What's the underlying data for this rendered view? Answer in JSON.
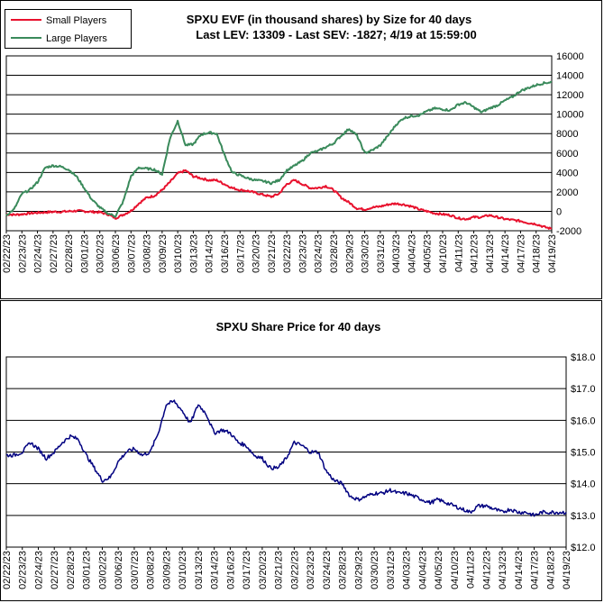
{
  "chart_data": [
    {
      "type": "line",
      "title": "SPXU EVF (in thousand shares) by Size for 40 days",
      "subtitle": "Last LEV: 13309 - Last SEV: -1827; 4/19 at 15:59:00",
      "ylim": [
        -2000,
        16000
      ],
      "yticks": [
        -2000,
        0,
        2000,
        4000,
        6000,
        8000,
        10000,
        12000,
        14000,
        16000
      ],
      "grid": true,
      "legend_position": "top-left",
      "categories": [
        "02/22/23",
        "02/23/23",
        "02/24/23",
        "02/27/23",
        "02/28/23",
        "03/01/23",
        "03/02/23",
        "03/06/23",
        "03/07/23",
        "03/08/23",
        "03/09/23",
        "03/10/23",
        "03/13/23",
        "03/14/23",
        "03/16/23",
        "03/17/23",
        "03/20/23",
        "03/21/23",
        "03/22/23",
        "03/23/23",
        "03/24/23",
        "03/28/23",
        "03/29/23",
        "03/30/23",
        "03/31/23",
        "04/03/23",
        "04/04/23",
        "04/05/23",
        "04/10/23",
        "04/11/23",
        "04/12/23",
        "04/13/23",
        "04/14/23",
        "04/17/23",
        "04/18/23",
        "04/19/23"
      ],
      "series": [
        {
          "name": "Small Players",
          "color": "#e8112d",
          "x": [
            0,
            0.5,
            1,
            1.5,
            2,
            2.5,
            3,
            3.5,
            4,
            4.5,
            5,
            5.5,
            6,
            6.5,
            7,
            7.5,
            8,
            8.5,
            9,
            9.5,
            10,
            10.5,
            11,
            11.5,
            12,
            12.5,
            13,
            13.5,
            14,
            14.5,
            15,
            15.5,
            16,
            16.5,
            17,
            17.5,
            18,
            18.5,
            19,
            19.5,
            20,
            20.5,
            21,
            21.5,
            22,
            22.5,
            23,
            23.5,
            24,
            24.5,
            25,
            25.5,
            26,
            26.5,
            27,
            27.5,
            28,
            28.5,
            29,
            29.5,
            30,
            30.5,
            31,
            31.5,
            32,
            32.5,
            33,
            33.5,
            34,
            34.5,
            35
          ],
          "values": [
            -300,
            -350,
            -300,
            -200,
            -150,
            -100,
            -50,
            -50,
            0,
            50,
            0,
            -50,
            -100,
            -300,
            -700,
            -350,
            50,
            800,
            1400,
            1600,
            2200,
            3000,
            3900,
            4200,
            3600,
            3400,
            3200,
            3200,
            2800,
            2400,
            2200,
            2100,
            1900,
            1700,
            1500,
            1800,
            2800,
            3200,
            2800,
            2400,
            2400,
            2600,
            2200,
            1400,
            900,
            300,
            200,
            400,
            500,
            700,
            800,
            700,
            500,
            200,
            0,
            -200,
            -300,
            -400,
            -700,
            -800,
            -600,
            -600,
            -400,
            -600,
            -800,
            -900,
            -1000,
            -1200,
            -1300,
            -1600,
            -1800
          ]
        },
        {
          "name": "Large Players",
          "color": "#3a8a5b",
          "x": [
            0,
            0.5,
            1,
            1.5,
            2,
            2.5,
            3,
            3.5,
            4,
            4.5,
            5,
            5.5,
            6,
            6.5,
            7,
            7.5,
            8,
            8.5,
            9,
            9.5,
            10,
            10.5,
            11,
            11.5,
            12,
            12.5,
            13,
            13.5,
            14,
            14.5,
            15,
            15.5,
            16,
            16.5,
            17,
            17.5,
            18,
            18.5,
            19,
            19.5,
            20,
            20.5,
            21,
            21.5,
            22,
            22.5,
            23,
            23.5,
            24,
            24.5,
            25,
            25.5,
            26,
            26.5,
            27,
            27.5,
            28,
            28.5,
            29,
            29.5,
            30,
            30.5,
            31,
            31.5,
            32,
            32.5,
            33,
            33.5,
            34,
            34.5,
            35
          ],
          "values": [
            -400,
            200,
            1800,
            2200,
            3000,
            4500,
            4700,
            4600,
            4300,
            3600,
            2400,
            1200,
            400,
            -200,
            -500,
            1000,
            3600,
            4500,
            4400,
            4300,
            3800,
            7500,
            9300,
            6800,
            6900,
            7900,
            8100,
            8000,
            5800,
            4000,
            3700,
            3400,
            3200,
            3100,
            2900,
            3200,
            4200,
            4700,
            5200,
            6000,
            6200,
            6600,
            7000,
            7800,
            8500,
            7800,
            6000,
            6300,
            6800,
            7800,
            8900,
            9600,
            9800,
            9900,
            10300,
            10600,
            10500,
            10400,
            11000,
            11200,
            10700,
            10200,
            10600,
            10900,
            11400,
            11800,
            12400,
            12700,
            13000,
            13200,
            13309
          ]
        }
      ]
    },
    {
      "type": "line",
      "title": "SPXU Share Price for 40 days",
      "ylim": [
        12,
        18
      ],
      "yticks": [
        "$12.0",
        "$13.0",
        "$14.0",
        "$15.0",
        "$16.0",
        "$17.0",
        "$18.0"
      ],
      "grid": true,
      "categories": [
        "02/22/23",
        "02/23/23",
        "02/24/23",
        "02/27/23",
        "02/28/23",
        "03/01/23",
        "03/02/23",
        "03/06/23",
        "03/07/23",
        "03/08/23",
        "03/09/23",
        "03/10/23",
        "03/13/23",
        "03/14/23",
        "03/16/23",
        "03/17/23",
        "03/20/23",
        "03/21/23",
        "03/22/23",
        "03/23/23",
        "03/24/23",
        "03/28/23",
        "03/29/23",
        "03/30/23",
        "03/31/23",
        "04/03/23",
        "04/04/23",
        "04/05/23",
        "04/10/23",
        "04/11/23",
        "04/12/23",
        "04/13/23",
        "04/14/23",
        "04/17/23",
        "04/18/23",
        "04/19/23"
      ],
      "series": [
        {
          "name": "",
          "color": "#000080",
          "x": [
            0,
            0.5,
            1,
            1.5,
            2,
            2.5,
            3,
            3.5,
            4,
            4.5,
            5,
            5.5,
            6,
            6.5,
            7,
            7.5,
            8,
            8.5,
            9,
            9.5,
            10,
            10.5,
            11,
            11.5,
            12,
            12.5,
            13,
            13.5,
            14,
            14.5,
            15,
            15.5,
            16,
            16.5,
            17,
            17.5,
            18,
            18.5,
            19,
            19.5,
            20,
            20.5,
            21,
            21.5,
            22,
            22.5,
            23,
            23.5,
            24,
            24.5,
            25,
            25.5,
            26,
            26.5,
            27,
            27.5,
            28,
            28.5,
            29,
            29.5,
            30,
            30.5,
            31,
            31.5,
            32,
            32.5,
            33,
            33.5,
            34,
            34.5,
            35
          ],
          "values": [
            14.9,
            14.9,
            15.0,
            15.3,
            15.1,
            14.8,
            15.0,
            15.3,
            15.5,
            15.4,
            14.9,
            14.5,
            14.1,
            14.2,
            14.7,
            15.0,
            15.1,
            14.9,
            15.0,
            15.6,
            16.5,
            16.6,
            16.3,
            15.9,
            16.5,
            16.2,
            15.6,
            15.7,
            15.6,
            15.3,
            15.2,
            14.9,
            14.8,
            14.5,
            14.5,
            14.8,
            15.3,
            15.2,
            15.0,
            15.0,
            14.4,
            14.1,
            14.0,
            13.6,
            13.5,
            13.6,
            13.7,
            13.7,
            13.8,
            13.7,
            13.7,
            13.6,
            13.5,
            13.4,
            13.5,
            13.4,
            13.3,
            13.2,
            13.1,
            13.3,
            13.3,
            13.2,
            13.1,
            13.2,
            13.1,
            13.1,
            13.0,
            13.1,
            13.1,
            13.1,
            13.1
          ]
        }
      ]
    }
  ]
}
